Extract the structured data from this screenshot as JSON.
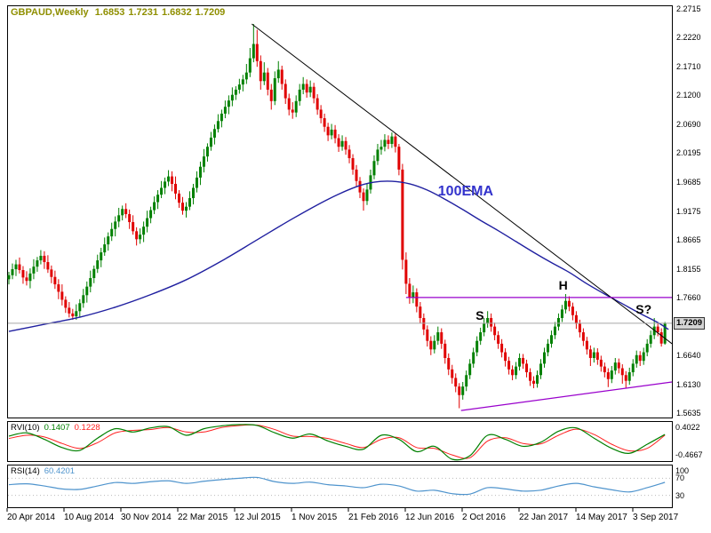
{
  "header": {
    "symbol_period": "GBPAUD,Weekly",
    "open": "1.6853",
    "high": "1.7231",
    "low": "1.6832",
    "close": "1.7209"
  },
  "price_axis": {
    "labels": [
      "2.2715",
      "2.2220",
      "2.1710",
      "2.1200",
      "2.0690",
      "2.0195",
      "1.9685",
      "1.9175",
      "1.8665",
      "1.8155",
      "1.7660",
      "1.6640",
      "1.6130",
      "1.5635"
    ],
    "current_price": "1.7209"
  },
  "time_axis": {
    "labels": [
      "20 Apr 2014",
      "10 Aug 2014",
      "30 Nov 2014",
      "22 Mar 2015",
      "12 Jul 2015",
      "1 Nov 2015",
      "21 Feb 2016",
      "12 Jun 2016",
      "2 Oct 2016",
      "22 Jan 2017",
      "14 May 2017",
      "3 Sep 2017"
    ]
  },
  "annotations": {
    "ema_label": "100EMA",
    "left_shoulder": "S",
    "head": "H",
    "right_shoulder": "S?"
  },
  "indicators": {
    "rvi": {
      "label": "RVI(10)",
      "value_main": "0.1407",
      "value_signal": "0.1228",
      "axis_max": "0.4022",
      "axis_min": "-0.4667"
    },
    "rsi": {
      "label": "RSI(14)",
      "value": "60.4201",
      "axis_labels": [
        "100",
        "70",
        "30"
      ]
    }
  },
  "colors": {
    "up": "#008000",
    "down": "#e00000",
    "ema": "#2020a0",
    "ema_label": "#3333cc",
    "trendline": "#000000",
    "pattern_lines": "#9900cc",
    "price_line": "#a8a8a8",
    "header_text": "#8f8f00",
    "rvi_main": "#008000",
    "rvi_signal": "#ff2020",
    "rsi_line": "#4f94cd",
    "border": "#000000",
    "level_dotted": "#bbbbbb"
  },
  "chart_data": {
    "type": "candlestick",
    "symbol": "GBPAUD",
    "timeframe": "Weekly",
    "price_range": [
      1.5635,
      2.2715
    ],
    "current_price": 1.7209,
    "candles": [
      [
        1.798,
        1.811,
        1.789,
        1.805
      ],
      [
        1.805,
        1.8255,
        1.798,
        1.8155
      ],
      [
        1.8155,
        1.832,
        1.8035,
        1.824
      ],
      [
        1.824,
        1.836,
        1.808,
        1.814
      ],
      [
        1.814,
        1.821,
        1.79,
        1.801
      ],
      [
        1.801,
        1.812,
        1.787,
        1.795
      ],
      [
        1.795,
        1.817,
        1.782,
        1.808
      ],
      [
        1.808,
        1.833,
        1.798,
        1.82
      ],
      [
        1.82,
        1.837,
        1.811,
        1.831
      ],
      [
        1.831,
        1.849,
        1.824,
        1.839
      ],
      [
        1.839,
        1.847,
        1.816,
        1.828
      ],
      [
        1.828,
        1.84,
        1.809,
        1.815
      ],
      [
        1.815,
        1.822,
        1.791,
        1.802
      ],
      [
        1.802,
        1.813,
        1.781,
        1.789
      ],
      [
        1.789,
        1.798,
        1.763,
        1.776
      ],
      [
        1.776,
        1.789,
        1.752,
        1.762
      ],
      [
        1.762,
        1.768,
        1.739,
        1.748
      ],
      [
        1.748,
        1.758,
        1.731,
        1.738
      ],
      [
        1.738,
        1.746,
        1.727,
        1.733
      ],
      [
        1.733,
        1.754,
        1.727,
        1.742
      ],
      [
        1.742,
        1.763,
        1.731,
        1.756
      ],
      [
        1.756,
        1.781,
        1.748,
        1.77
      ],
      [
        1.77,
        1.794,
        1.757,
        1.785
      ],
      [
        1.785,
        1.813,
        1.775,
        1.8
      ],
      [
        1.8,
        1.822,
        1.791,
        1.816
      ],
      [
        1.816,
        1.841,
        1.809,
        1.831
      ],
      [
        1.831,
        1.853,
        1.819,
        1.845
      ],
      [
        1.845,
        1.871,
        1.839,
        1.859
      ],
      [
        1.859,
        1.88,
        1.848,
        1.873
      ],
      [
        1.873,
        1.897,
        1.865,
        1.886
      ],
      [
        1.886,
        1.908,
        1.873,
        1.899
      ],
      [
        1.899,
        1.923,
        1.889,
        1.91
      ],
      [
        1.91,
        1.927,
        1.901,
        1.921
      ],
      [
        1.921,
        1.931,
        1.905,
        1.912
      ],
      [
        1.912,
        1.92,
        1.886,
        1.898
      ],
      [
        1.898,
        1.91,
        1.876,
        1.882
      ],
      [
        1.882,
        1.889,
        1.857,
        1.868
      ],
      [
        1.868,
        1.887,
        1.86,
        1.876
      ],
      [
        1.876,
        1.899,
        1.863,
        1.89
      ],
      [
        1.89,
        1.918,
        1.88,
        1.905
      ],
      [
        1.905,
        1.925,
        1.896,
        1.919
      ],
      [
        1.919,
        1.943,
        1.912,
        1.933
      ],
      [
        1.933,
        1.954,
        1.921,
        1.946
      ],
      [
        1.946,
        1.97,
        1.94,
        1.958
      ],
      [
        1.958,
        1.976,
        1.947,
        1.969
      ],
      [
        1.969,
        1.989,
        1.961,
        1.978
      ],
      [
        1.978,
        1.987,
        1.952,
        1.965
      ],
      [
        1.965,
        1.978,
        1.938,
        1.948
      ],
      [
        1.948,
        1.954,
        1.923,
        1.932
      ],
      [
        1.932,
        1.942,
        1.911,
        1.918
      ],
      [
        1.918,
        1.933,
        1.906,
        1.925
      ],
      [
        1.925,
        1.952,
        1.919,
        1.94
      ],
      [
        1.94,
        1.965,
        1.929,
        1.958
      ],
      [
        1.958,
        1.987,
        1.95,
        1.976
      ],
      [
        1.976,
        2.004,
        1.963,
        1.995
      ],
      [
        1.995,
        2.026,
        1.985,
        2.013
      ],
      [
        2.013,
        2.036,
        2.004,
        2.03
      ],
      [
        2.03,
        2.056,
        2.023,
        2.046
      ],
      [
        2.046,
        2.069,
        2.034,
        2.061
      ],
      [
        2.061,
        2.087,
        2.055,
        2.075
      ],
      [
        2.075,
        2.095,
        2.064,
        2.088
      ],
      [
        2.088,
        2.111,
        2.08,
        2.1
      ],
      [
        2.1,
        2.12,
        2.087,
        2.111
      ],
      [
        2.111,
        2.134,
        2.101,
        2.121
      ],
      [
        2.121,
        2.136,
        2.112,
        2.13
      ],
      [
        2.13,
        2.149,
        2.123,
        2.139
      ],
      [
        2.139,
        2.156,
        2.127,
        2.148
      ],
      [
        2.148,
        2.175,
        2.14,
        2.16
      ],
      [
        2.16,
        2.203,
        2.152,
        2.185
      ],
      [
        2.185,
        2.245,
        2.178,
        2.21
      ],
      [
        2.21,
        2.235,
        2.17,
        2.18
      ],
      [
        2.18,
        2.19,
        2.13,
        2.145
      ],
      [
        2.145,
        2.178,
        2.138,
        2.16
      ],
      [
        2.16,
        2.168,
        2.12,
        2.13
      ],
      [
        2.13,
        2.14,
        2.095,
        2.11
      ],
      [
        2.11,
        2.162,
        2.103,
        2.15
      ],
      [
        2.15,
        2.18,
        2.142,
        2.165
      ],
      [
        2.165,
        2.172,
        2.13,
        2.14
      ],
      [
        2.14,
        2.148,
        2.105,
        2.115
      ],
      [
        2.115,
        2.123,
        2.085,
        2.095
      ],
      [
        2.095,
        2.108,
        2.079,
        2.09
      ],
      [
        2.09,
        2.12,
        2.082,
        2.11
      ],
      [
        2.11,
        2.14,
        2.102,
        2.13
      ],
      [
        2.13,
        2.152,
        2.122,
        2.14
      ],
      [
        2.14,
        2.148,
        2.116,
        2.125
      ],
      [
        2.125,
        2.146,
        2.117,
        2.135
      ],
      [
        2.135,
        2.142,
        2.106,
        2.115
      ],
      [
        2.115,
        2.122,
        2.086,
        2.095
      ],
      [
        2.095,
        2.103,
        2.071,
        2.08
      ],
      [
        2.08,
        2.088,
        2.056,
        2.065
      ],
      [
        2.065,
        2.072,
        2.04,
        2.05
      ],
      [
        2.05,
        2.07,
        2.043,
        2.06
      ],
      [
        2.06,
        2.068,
        2.036,
        2.045
      ],
      [
        2.045,
        2.052,
        2.021,
        2.03
      ],
      [
        2.03,
        2.05,
        2.023,
        2.04
      ],
      [
        2.04,
        2.047,
        2.016,
        2.025
      ],
      [
        2.025,
        2.033,
        2.001,
        2.01
      ],
      [
        2.01,
        2.017,
        1.981,
        1.99
      ],
      [
        1.99,
        1.998,
        1.961,
        1.97
      ],
      [
        1.97,
        1.977,
        1.94,
        1.95
      ],
      [
        1.95,
        1.957,
        1.918,
        1.935
      ],
      [
        1.935,
        1.965,
        1.928,
        1.955
      ],
      [
        1.955,
        1.99,
        1.948,
        1.98
      ],
      [
        1.98,
        2.015,
        1.973,
        2.005
      ],
      [
        2.005,
        2.035,
        1.998,
        2.025
      ],
      [
        2.025,
        2.042,
        2.016,
        2.03
      ],
      [
        2.03,
        2.052,
        2.022,
        2.042
      ],
      [
        2.042,
        2.05,
        2.026,
        2.035
      ],
      [
        2.035,
        2.055,
        2.028,
        2.048
      ],
      [
        2.048,
        2.053,
        2.02,
        2.03
      ],
      [
        2.03,
        2.035,
        1.98,
        1.99
      ],
      [
        1.99,
        2.0,
        1.815,
        1.832
      ],
      [
        1.832,
        1.845,
        1.772,
        1.79
      ],
      [
        1.79,
        1.8,
        1.755,
        1.765
      ],
      [
        1.765,
        1.787,
        1.756,
        1.775
      ],
      [
        1.775,
        1.782,
        1.74,
        1.75
      ],
      [
        1.75,
        1.758,
        1.721,
        1.73
      ],
      [
        1.73,
        1.738,
        1.7,
        1.71
      ],
      [
        1.71,
        1.717,
        1.68,
        1.69
      ],
      [
        1.69,
        1.698,
        1.665,
        1.675
      ],
      [
        1.675,
        1.7,
        1.668,
        1.69
      ],
      [
        1.69,
        1.715,
        1.683,
        1.705
      ],
      [
        1.705,
        1.712,
        1.676,
        1.685
      ],
      [
        1.685,
        1.692,
        1.65,
        1.66
      ],
      [
        1.66,
        1.668,
        1.63,
        1.64
      ],
      [
        1.64,
        1.648,
        1.615,
        1.625
      ],
      [
        1.625,
        1.633,
        1.6,
        1.61
      ],
      [
        1.61,
        1.616,
        1.572,
        1.595
      ],
      [
        1.595,
        1.618,
        1.587,
        1.61
      ],
      [
        1.61,
        1.638,
        1.602,
        1.63
      ],
      [
        1.63,
        1.658,
        1.623,
        1.65
      ],
      [
        1.65,
        1.678,
        1.643,
        1.67
      ],
      [
        1.67,
        1.698,
        1.663,
        1.69
      ],
      [
        1.69,
        1.713,
        1.683,
        1.705
      ],
      [
        1.705,
        1.73,
        1.698,
        1.72
      ],
      [
        1.72,
        1.742,
        1.713,
        1.73
      ],
      [
        1.73,
        1.738,
        1.706,
        1.715
      ],
      [
        1.715,
        1.722,
        1.691,
        1.7
      ],
      [
        1.7,
        1.707,
        1.676,
        1.685
      ],
      [
        1.685,
        1.693,
        1.661,
        1.67
      ],
      [
        1.67,
        1.677,
        1.645,
        1.655
      ],
      [
        1.655,
        1.662,
        1.631,
        1.64
      ],
      [
        1.64,
        1.647,
        1.621,
        1.63
      ],
      [
        1.63,
        1.653,
        1.623,
        1.645
      ],
      [
        1.645,
        1.668,
        1.638,
        1.66
      ],
      [
        1.66,
        1.667,
        1.641,
        1.65
      ],
      [
        1.65,
        1.657,
        1.626,
        1.635
      ],
      [
        1.635,
        1.642,
        1.611,
        1.62
      ],
      [
        1.62,
        1.628,
        1.607,
        1.615
      ],
      [
        1.615,
        1.638,
        1.608,
        1.63
      ],
      [
        1.63,
        1.658,
        1.623,
        1.65
      ],
      [
        1.65,
        1.678,
        1.643,
        1.67
      ],
      [
        1.67,
        1.693,
        1.663,
        1.685
      ],
      [
        1.685,
        1.708,
        1.678,
        1.7
      ],
      [
        1.7,
        1.723,
        1.693,
        1.715
      ],
      [
        1.715,
        1.738,
        1.708,
        1.73
      ],
      [
        1.73,
        1.753,
        1.723,
        1.745
      ],
      [
        1.745,
        1.772,
        1.738,
        1.76
      ],
      [
        1.76,
        1.768,
        1.742,
        1.75
      ],
      [
        1.75,
        1.757,
        1.726,
        1.735
      ],
      [
        1.735,
        1.742,
        1.711,
        1.72
      ],
      [
        1.72,
        1.727,
        1.696,
        1.705
      ],
      [
        1.705,
        1.712,
        1.681,
        1.69
      ],
      [
        1.69,
        1.697,
        1.666,
        1.675
      ],
      [
        1.675,
        1.682,
        1.646,
        1.66
      ],
      [
        1.66,
        1.678,
        1.652,
        1.67
      ],
      [
        1.67,
        1.677,
        1.648,
        1.657
      ],
      [
        1.657,
        1.664,
        1.636,
        1.645
      ],
      [
        1.645,
        1.652,
        1.626,
        1.635
      ],
      [
        1.635,
        1.642,
        1.609,
        1.623
      ],
      [
        1.623,
        1.646,
        1.616,
        1.638
      ],
      [
        1.638,
        1.66,
        1.631,
        1.652
      ],
      [
        1.652,
        1.659,
        1.633,
        1.642
      ],
      [
        1.642,
        1.649,
        1.615,
        1.63
      ],
      [
        1.63,
        1.637,
        1.607,
        1.62
      ],
      [
        1.62,
        1.643,
        1.613,
        1.635
      ],
      [
        1.635,
        1.658,
        1.628,
        1.65
      ],
      [
        1.65,
        1.673,
        1.643,
        1.665
      ],
      [
        1.665,
        1.672,
        1.646,
        1.655
      ],
      [
        1.655,
        1.678,
        1.648,
        1.67
      ],
      [
        1.67,
        1.693,
        1.663,
        1.685
      ],
      [
        1.685,
        1.708,
        1.678,
        1.7
      ],
      [
        1.7,
        1.73,
        1.693,
        1.715
      ],
      [
        1.715,
        1.722,
        1.698,
        1.705
      ],
      [
        1.705,
        1.712,
        1.68,
        1.6853
      ],
      [
        1.6853,
        1.7231,
        1.6832,
        1.7209
      ]
    ],
    "ema_100": [
      [
        0,
        1.7066
      ],
      [
        10,
        1.719
      ],
      [
        20,
        1.7315
      ],
      [
        30,
        1.749
      ],
      [
        40,
        1.771
      ],
      [
        50,
        1.797
      ],
      [
        60,
        1.83
      ],
      [
        70,
        1.867
      ],
      [
        80,
        1.904
      ],
      [
        90,
        1.938
      ],
      [
        98,
        1.96
      ],
      [
        103,
        1.968
      ],
      [
        108,
        1.9695
      ],
      [
        113,
        1.965
      ],
      [
        118,
        1.954
      ],
      [
        123,
        1.938
      ],
      [
        128,
        1.92
      ],
      [
        133,
        1.901
      ],
      [
        138,
        1.883
      ],
      [
        143,
        1.864
      ],
      [
        148,
        1.845
      ],
      [
        153,
        1.827
      ],
      [
        158,
        1.81
      ],
      [
        163,
        1.79
      ],
      [
        168,
        1.772
      ],
      [
        173,
        1.755
      ],
      [
        178,
        1.738
      ],
      [
        183,
        1.722
      ],
      [
        186,
        1.71
      ]
    ],
    "trendline_down": {
      "from": [
        68.5,
        2.245
      ],
      "to": [
        187,
        1.685
      ]
    },
    "trendline_up": {
      "from": [
        127.5,
        1.568
      ],
      "to": [
        187,
        1.618
      ]
    },
    "resistance_line": {
      "price": 1.766,
      "from_week": 112,
      "to_week": 187
    },
    "ema_label_pos": {
      "week": 121,
      "price": 1.95
    },
    "markers": [
      {
        "name": "left-shoulder",
        "label": "S",
        "week": 132.8,
        "price": 1.734
      },
      {
        "name": "head",
        "label": "H",
        "week": 156.3,
        "price": 1.787
      },
      {
        "name": "right-shoulder",
        "label": "S?",
        "week": 179.0,
        "price": 1.745
      }
    ],
    "rvi": {
      "x_step": 5,
      "range": [
        -0.4667,
        0.4022
      ],
      "main": [
        0.1,
        0.18,
        0.02,
        -0.18,
        -0.25,
        0.05,
        0.28,
        0.2,
        0.3,
        0.33,
        0.12,
        0.28,
        0.35,
        0.38,
        0.36,
        0.18,
        0.05,
        0.15,
        -0.02,
        -0.15,
        -0.22,
        0.12,
        0.02,
        -0.28,
        -0.15,
        -0.4667,
        -0.38,
        0.12,
        0.02,
        -0.15,
        -0.05,
        0.22,
        0.3,
        0.05,
        -0.2,
        -0.32,
        -0.1,
        0.1407
      ],
      "signal": [
        0.04,
        0.12,
        0.08,
        -0.08,
        -0.2,
        -0.06,
        0.18,
        0.24,
        0.26,
        0.31,
        0.2,
        0.2,
        0.31,
        0.36,
        0.37,
        0.26,
        0.1,
        0.09,
        0.04,
        -0.08,
        -0.18,
        0.02,
        0.06,
        -0.18,
        -0.2,
        -0.36,
        -0.43,
        -0.02,
        0.06,
        -0.08,
        -0.09,
        0.12,
        0.27,
        0.14,
        -0.1,
        -0.26,
        -0.2,
        0.1228
      ]
    },
    "rsi": {
      "x_step": 5,
      "range": [
        0,
        100
      ],
      "levels": [
        30,
        70
      ],
      "values": [
        55,
        57,
        52,
        45,
        44,
        52,
        60,
        58,
        62,
        64,
        58,
        63,
        67,
        70,
        72,
        62,
        58,
        61,
        55,
        52,
        48,
        56,
        52,
        40,
        42,
        34,
        33,
        48,
        45,
        40,
        42,
        52,
        58,
        50,
        43,
        38,
        48,
        60.4201
      ]
    }
  }
}
